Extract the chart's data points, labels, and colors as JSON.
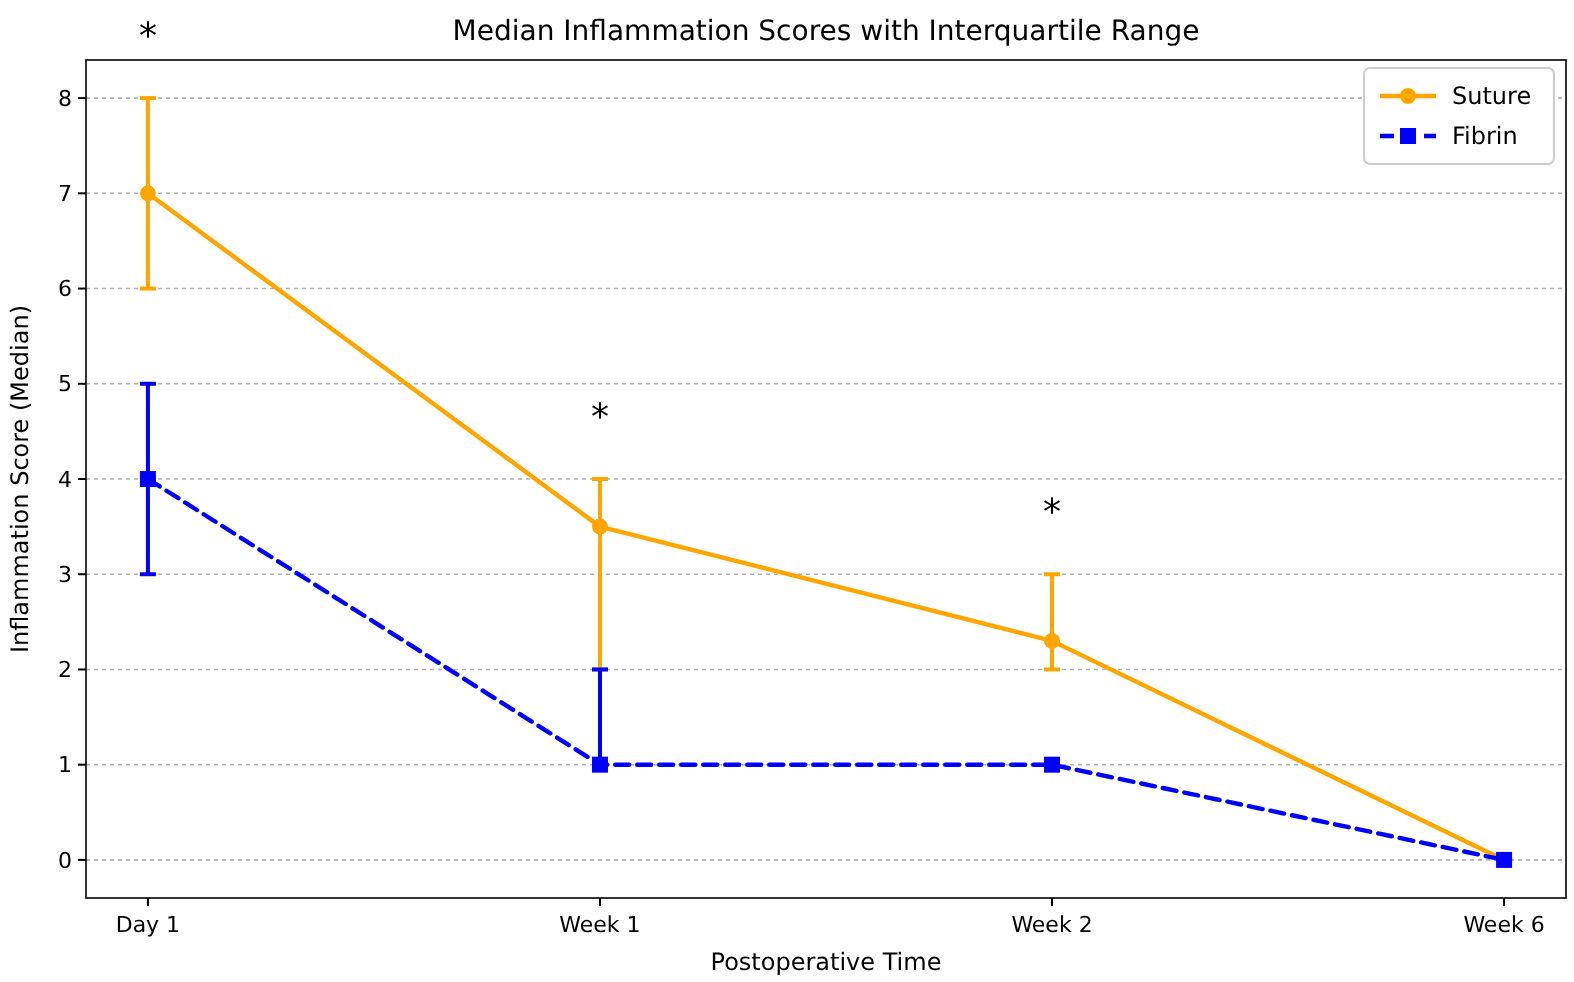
{
  "chart_data": {
    "type": "line",
    "title": "Median Inflammation Scores with Interquartile Range",
    "xlabel": "Postoperative Time",
    "ylabel": "Inflammation Score (Median)",
    "categories": [
      "Day 1",
      "Week 1",
      "Week 2",
      "Week 6"
    ],
    "series": [
      {
        "name": "Suture",
        "color": "#ffa500",
        "values": [
          7,
          3.5,
          2.3,
          0
        ],
        "errors": [
          [
            6,
            8
          ],
          [
            2,
            4
          ],
          [
            2,
            3
          ],
          [
            0,
            0
          ]
        ],
        "marker": "circle",
        "line_style": "solid"
      },
      {
        "name": "Fibrin",
        "color": "#0000ff",
        "values": [
          4,
          1,
          1,
          0
        ],
        "errors": [
          [
            3,
            5
          ],
          [
            1,
            2
          ],
          [
            1,
            1
          ],
          [
            0,
            0
          ]
        ],
        "marker": "square",
        "line_style": "dashed"
      }
    ],
    "ylim": [
      -0.4,
      8.4
    ],
    "yticks": [
      0,
      1,
      2,
      3,
      4,
      5,
      6,
      7,
      8
    ],
    "grid": "y",
    "legend": "top right",
    "annotations": [
      "*",
      "*",
      "*"
    ]
  }
}
